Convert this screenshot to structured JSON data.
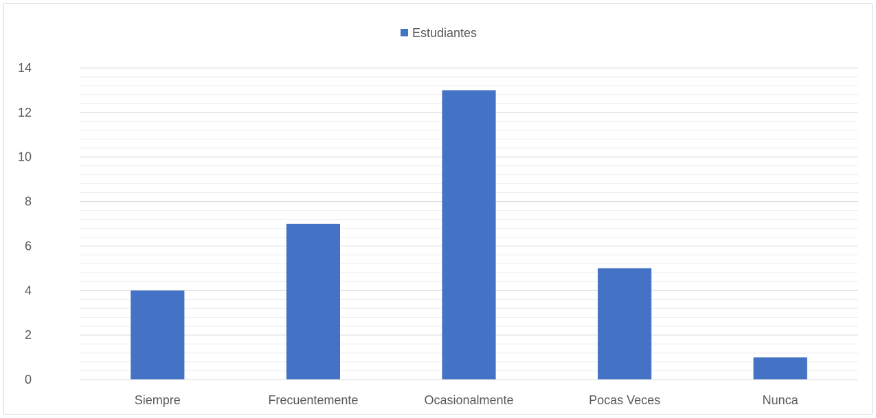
{
  "chart_data": {
    "type": "bar",
    "categories": [
      "Siempre",
      "Frecuentemente",
      "Ocasionalmente",
      "Pocas Veces",
      "Nunca"
    ],
    "series": [
      {
        "name": "Estudiantes",
        "values": [
          4,
          7,
          13,
          5,
          1
        ],
        "color": "#4472c4"
      }
    ],
    "ylim": [
      0,
      14
    ],
    "yticks": [
      0,
      2,
      4,
      6,
      8,
      10,
      12,
      14
    ],
    "ytick_labels": [
      "0",
      "2",
      "4",
      "6",
      "8",
      "10",
      "12",
      "14"
    ],
    "grid": {
      "major": true,
      "minor": true,
      "major_color": "#d9d9d9",
      "minor_color": "#ececec"
    },
    "legend": {
      "position": "top",
      "entries": [
        "Estudiantes"
      ]
    }
  }
}
